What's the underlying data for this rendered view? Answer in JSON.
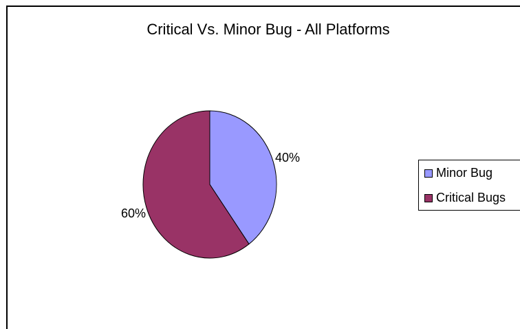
{
  "chart_data": {
    "type": "pie",
    "title": "Critical Vs. Minor Bug - All Platforms",
    "categories": [
      "Minor Bug",
      "Critical Bugs"
    ],
    "values": [
      40,
      60
    ],
    "data_labels": [
      "40%",
      "60%"
    ],
    "colors": [
      "#9999ff",
      "#993366"
    ],
    "legend_placement": "right"
  }
}
